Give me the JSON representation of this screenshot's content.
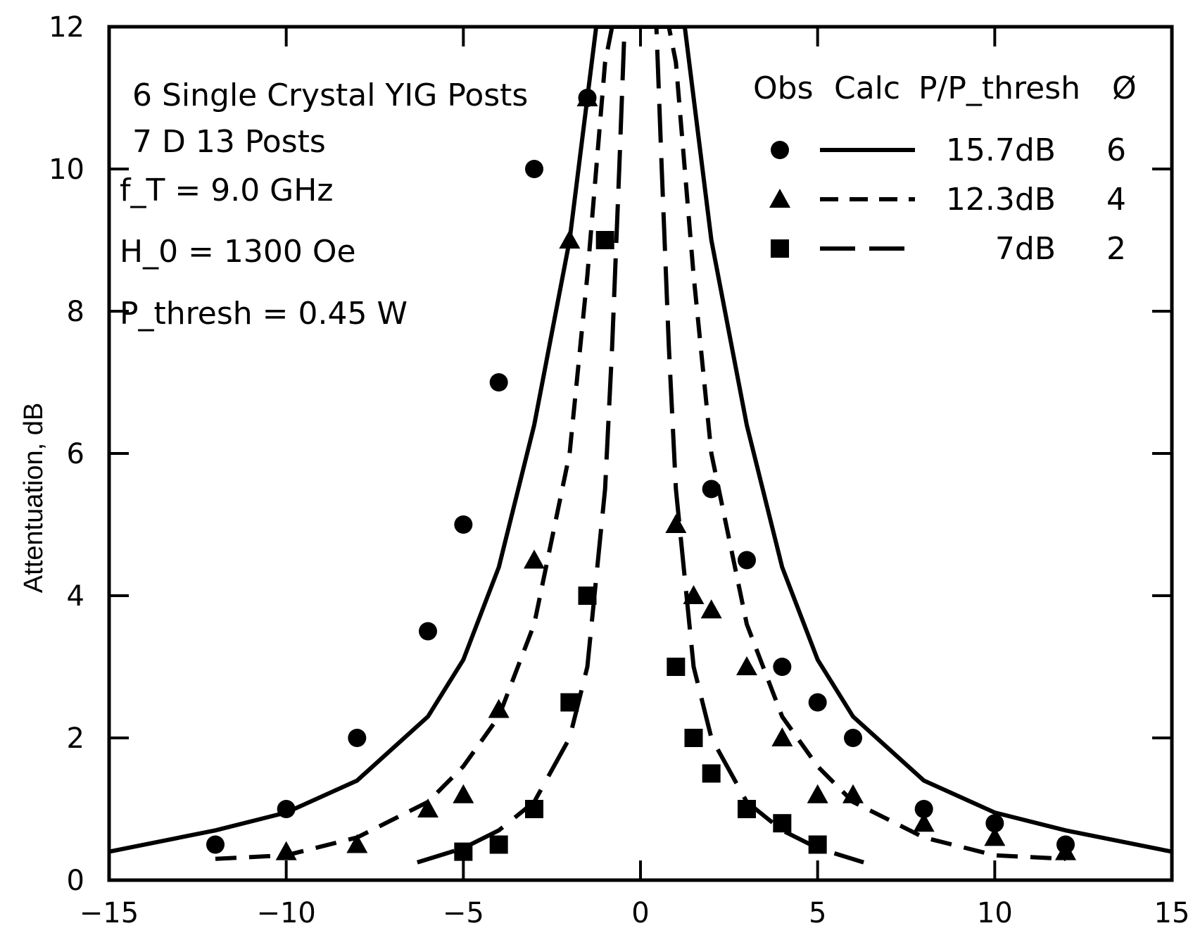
{
  "chart_data": {
    "type": "line",
    "ylabel": "Attentuation, dB",
    "xlabel": "",
    "xlim": [
      -15,
      15
    ],
    "ylim": [
      0,
      12
    ],
    "x_ticks": [
      -15,
      -10,
      -5,
      0,
      5,
      10,
      15
    ],
    "x_tick_labels": [
      "−15",
      "−10",
      "−5",
      "0",
      "5",
      "10",
      "15"
    ],
    "y_ticks": [
      0,
      2,
      4,
      6,
      8,
      10,
      12
    ],
    "y_tick_labels": [
      "0",
      "2",
      "4",
      "6",
      "8",
      "10",
      "12"
    ],
    "grid": false,
    "annotations": [
      "6 Single Crystal YIG Posts",
      "7  D 13 Posts",
      "f_T = 9.0 GHz",
      "H_0 = 1300 Oe",
      "P_thresh = 0.45 W"
    ],
    "legend": {
      "placement": "top-right",
      "headers": [
        "Obs",
        "Calc",
        "P/P_thresh",
        "Ø"
      ],
      "entries": [
        {
          "marker": "circle",
          "line": "solid",
          "ratio": "15.7dB",
          "phi": "6"
        },
        {
          "marker": "triangle",
          "line": "dashed",
          "ratio": "12.3dB",
          "phi": "4"
        },
        {
          "marker": "square",
          "line": "long-dashed",
          "ratio": "7dB",
          "phi": "2"
        }
      ]
    },
    "series": [
      {
        "ratio": "15.7dB",
        "phi": "6",
        "marker": "circle",
        "line": "solid",
        "observed": {
          "x": [
            -12,
            -10,
            -8,
            -6,
            -5,
            -4,
            -3,
            -1.5,
            2,
            3,
            4,
            5,
            6,
            8,
            10,
            12
          ],
          "y": [
            0.5,
            1.0,
            2.0,
            3.5,
            5.0,
            7.0,
            10.0,
            11.0,
            5.5,
            4.5,
            3.0,
            2.5,
            2.0,
            1.0,
            0.8,
            0.5
          ]
        },
        "calculated": {
          "x": [
            -15,
            -12,
            -10,
            -8,
            -6,
            -5,
            -4,
            -3,
            -2,
            -1.5,
            -1.25,
            -1.0,
            1.0,
            1.25,
            1.5,
            2,
            3,
            4,
            5,
            6,
            8,
            10,
            12,
            15
          ],
          "y": [
            0.4,
            0.7,
            0.95,
            1.4,
            2.3,
            3.1,
            4.4,
            6.4,
            9.0,
            11.0,
            12.0,
            12.0,
            12.0,
            12.0,
            11.0,
            9.0,
            6.4,
            4.4,
            3.1,
            2.3,
            1.4,
            0.95,
            0.7,
            0.4
          ]
        }
      },
      {
        "ratio": "12.3dB",
        "phi": "4",
        "marker": "triangle",
        "line": "dashed",
        "observed": {
          "x": [
            -10,
            -8,
            -6,
            -5,
            -4,
            -3,
            -2,
            -1.5,
            1,
            1.5,
            2,
            3,
            4,
            5,
            6,
            8,
            10,
            12
          ],
          "y": [
            0.4,
            0.5,
            1.0,
            1.2,
            2.4,
            4.5,
            9.0,
            11.0,
            5.0,
            4.0,
            3.8,
            3.0,
            2.0,
            1.2,
            1.2,
            0.8,
            0.6,
            0.4
          ]
        },
        "calculated": {
          "x": [
            -12,
            -10,
            -8,
            -6,
            -5,
            -4,
            -3,
            -2,
            -1.5,
            -1.0,
            -0.8,
            0.8,
            1.0,
            1.5,
            2,
            3,
            4,
            5,
            6,
            8,
            10,
            12
          ],
          "y": [
            0.3,
            0.35,
            0.6,
            1.1,
            1.6,
            2.3,
            3.6,
            6.0,
            8.5,
            11.5,
            12.0,
            12.0,
            11.5,
            8.5,
            6.0,
            3.6,
            2.3,
            1.6,
            1.1,
            0.6,
            0.35,
            0.3
          ]
        }
      },
      {
        "ratio": "7dB",
        "phi": "2",
        "marker": "square",
        "line": "long-dashed",
        "observed": {
          "x": [
            -5,
            -4,
            -3,
            -2,
            -1.5,
            -1,
            1,
            1.5,
            2,
            3,
            4,
            5
          ],
          "y": [
            0.4,
            0.5,
            1.0,
            2.5,
            4.0,
            9.0,
            3.0,
            2.0,
            1.5,
            1.0,
            0.8,
            0.5
          ]
        },
        "calculated": {
          "x": [
            -6.3,
            -5,
            -4,
            -3,
            -2,
            -1.5,
            -1,
            -0.8,
            -0.6,
            -0.45,
            0.45,
            0.6,
            0.8,
            1,
            1.5,
            2,
            3,
            4,
            5,
            6.3
          ],
          "y": [
            0.25,
            0.45,
            0.7,
            1.1,
            2.0,
            3.0,
            5.5,
            7.5,
            10.0,
            12.0,
            12.0,
            10.0,
            7.5,
            5.5,
            3.0,
            2.0,
            1.1,
            0.7,
            0.45,
            0.25
          ]
        }
      }
    ]
  }
}
